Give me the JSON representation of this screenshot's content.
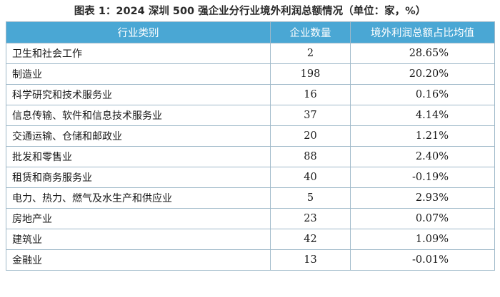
{
  "title": "图表 1：2024 深圳 500 强企业分行业境外利润总额情况（单位：家，%）",
  "table": {
    "headers": [
      "行业类别",
      "企业数量",
      "境外利润总额占比均值"
    ],
    "rows": [
      {
        "category": "卫生和社会工作",
        "count": "2",
        "share": "28.65%"
      },
      {
        "category": "制造业",
        "count": "198",
        "share": "20.20%"
      },
      {
        "category": "科学研究和技术服务业",
        "count": "16",
        "share": "0.16%"
      },
      {
        "category": "信息传输、软件和信息技术服务业",
        "count": "37",
        "share": "4.14%"
      },
      {
        "category": "交通运输、仓储和邮政业",
        "count": "20",
        "share": "1.21%"
      },
      {
        "category": "批发和零售业",
        "count": "88",
        "share": "2.40%"
      },
      {
        "category": "租赁和商务服务业",
        "count": "40",
        "share": "-0.19%"
      },
      {
        "category": "电力、热力、燃气及水生产和供应业",
        "count": "5",
        "share": "2.93%"
      },
      {
        "category": "房地产业",
        "count": "23",
        "share": "0.07%"
      },
      {
        "category": "建筑业",
        "count": "42",
        "share": "1.09%"
      },
      {
        "category": "金融业",
        "count": "13",
        "share": "-0.01%"
      }
    ]
  },
  "colors": {
    "header_bg": "#4aa7d4",
    "border": "#9fb9c9"
  }
}
